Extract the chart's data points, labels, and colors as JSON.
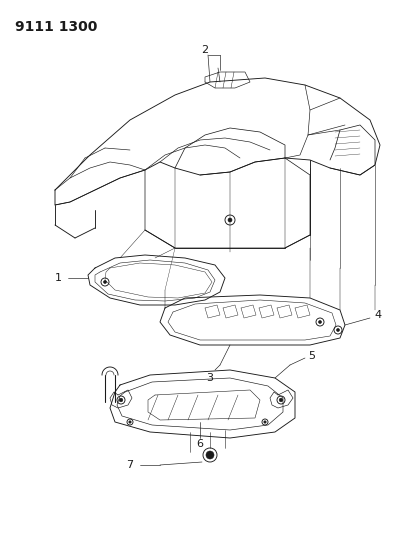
{
  "title": "9111 1300",
  "background_color": "#ffffff",
  "line_color": "#1a1a1a",
  "title_fontsize": 10,
  "fig_width": 4.11,
  "fig_height": 5.33,
  "dpi": 100,
  "label_fontsize": 8
}
